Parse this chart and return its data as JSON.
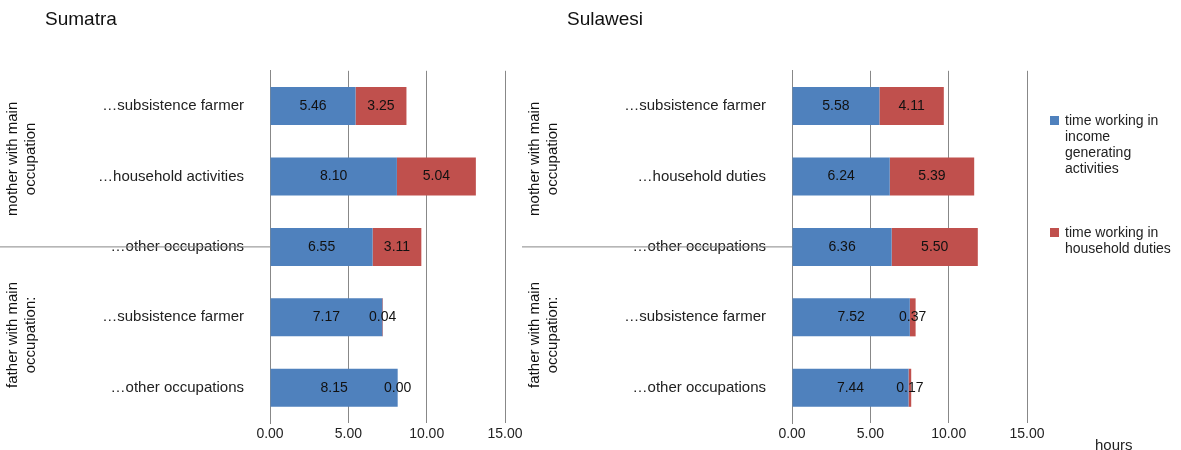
{
  "chart_data": [
    {
      "type": "bar",
      "orientation": "horizontal",
      "stacked": true,
      "title": "Sumatra",
      "categories": [
        "…subsistence farmer",
        "…household activities",
        "…other occupations",
        "…subsistence farmer",
        "…other occupations"
      ],
      "series": [
        {
          "name": "time working in income generating activities",
          "color": "#4f81bd",
          "values": [
            5.46,
            8.1,
            6.55,
            7.17,
            8.15
          ],
          "value_labels": [
            "5.46",
            "8.10",
            "6.55",
            "7.17",
            "8.15"
          ]
        },
        {
          "name": "time working in household duties",
          "color": "#c0504d",
          "values": [
            3.25,
            5.04,
            3.11,
            0.04,
            0.0
          ],
          "value_labels": [
            "3.25",
            "5.04",
            "3.11",
            "0.04",
            "0.00"
          ]
        }
      ],
      "xlim": [
        0,
        15
      ],
      "xticks": [
        {
          "value": 0,
          "label": "0.00"
        },
        {
          "value": 5,
          "label": "5.00"
        },
        {
          "value": 10,
          "label": "10.00"
        },
        {
          "value": 15,
          "label": "15.00"
        }
      ],
      "grid": "x",
      "legend": "right",
      "annotations": [
        "mother with main occupation",
        "father with main occupation:"
      ]
    },
    {
      "type": "bar",
      "orientation": "horizontal",
      "stacked": true,
      "title": "Sulawesi",
      "categories": [
        "…subsistence farmer",
        "…household duties",
        "…other occupations",
        "…subsistence farmer",
        "…other occupations"
      ],
      "series": [
        {
          "color": "#4f81bd",
          "values": [
            5.58,
            6.24,
            6.36,
            7.52,
            7.44
          ],
          "value_labels": [
            "5.58",
            "6.24",
            "6.36",
            "7.52",
            "7.44"
          ]
        },
        {
          "color": "#c0504d",
          "values": [
            4.11,
            5.39,
            5.5,
            0.37,
            0.17
          ],
          "value_labels": [
            "4.11",
            "5.39",
            "5.50",
            "0.37",
            "0.17"
          ]
        }
      ],
      "xlim": [
        0,
        15
      ],
      "xticks": [
        {
          "value": 0,
          "label": "0.00"
        },
        {
          "value": 5,
          "label": "5.00"
        },
        {
          "value": 10,
          "label": "10.00"
        },
        {
          "value": 15,
          "label": "15.00"
        }
      ],
      "xlabel": "hours",
      "grid": "x",
      "annotations": [
        "mother with main occupation",
        "father with main occupation:"
      ]
    }
  ]
}
